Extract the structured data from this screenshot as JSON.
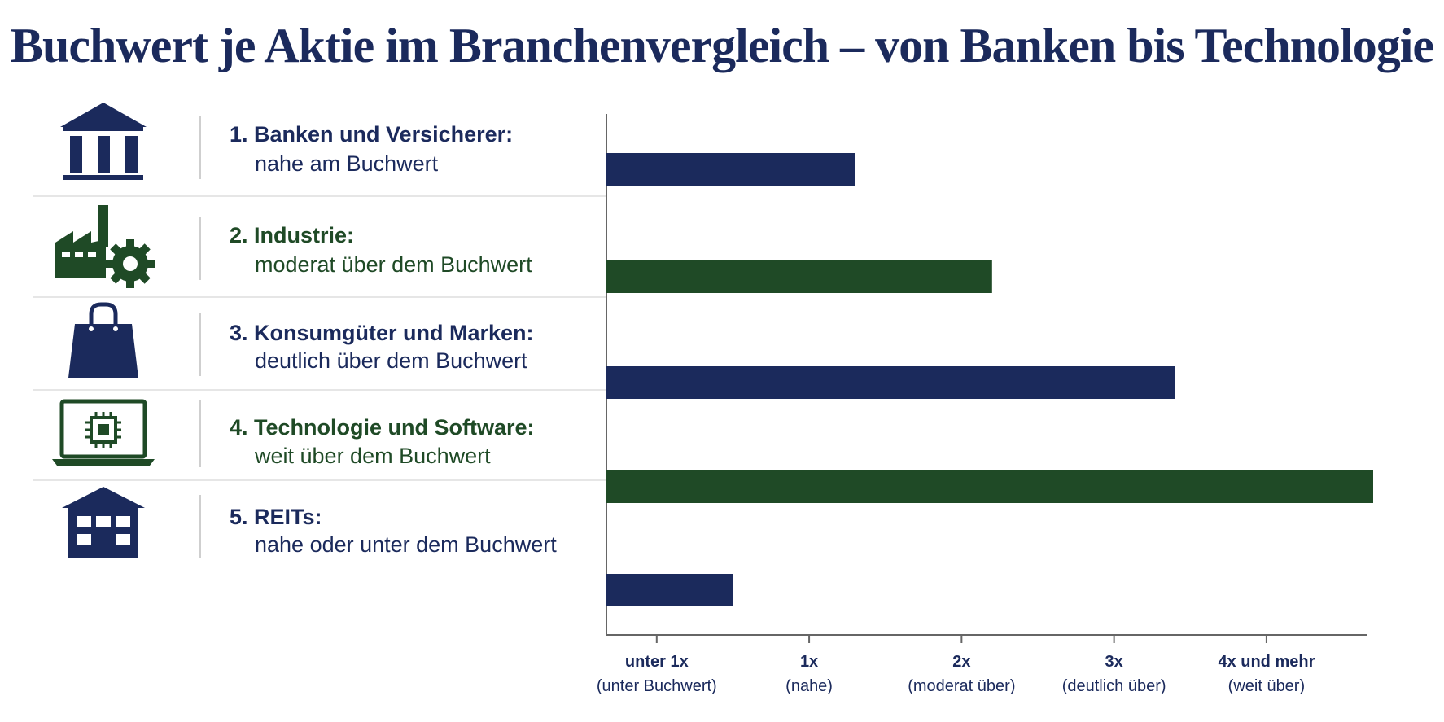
{
  "title": "Buchwert je Aktie im Branchenvergleich – von Banken bis Technologie",
  "colors": {
    "navy": "#1b2a5c",
    "green": "#1f4a26"
  },
  "rows": [
    {
      "heading": "1. Banken und Versicherer:",
      "subtitle": "nahe am Buchwert",
      "icon": "bank-icon",
      "color": "#1b2a5c"
    },
    {
      "heading": "2. Industrie:",
      "subtitle": "moderat über dem Buchwert",
      "icon": "factory-gear-icon",
      "color": "#1f4a26"
    },
    {
      "heading": "3. Konsumgüter und Marken:",
      "subtitle": "deutlich über dem Buchwert",
      "icon": "shopping-bag-icon",
      "color": "#1b2a5c"
    },
    {
      "heading": "4. Technologie und Software:",
      "subtitle": "weit über dem Buchwert",
      "icon": "laptop-chip-icon",
      "color": "#1f4a26"
    },
    {
      "heading": "5. REITs:",
      "subtitle": "nahe oder unter dem Buchwert",
      "icon": "building-icon",
      "color": "#1b2a5c"
    }
  ],
  "chart_data": {
    "type": "bar",
    "orientation": "horizontal",
    "categories": [
      "1. Banken und Versicherer",
      "2. Industrie",
      "3. Konsumgüter und Marken",
      "4. Technologie und Software",
      "5. REITs"
    ],
    "values": [
      1.3,
      2.2,
      3.4,
      4.7,
      0.5
    ],
    "xticks": [
      {
        "value": 0.0,
        "label": "unter 1x",
        "sublabel": "(unter Buchwert)"
      },
      {
        "value": 1.0,
        "label": "1x",
        "sublabel": "(nahe)"
      },
      {
        "value": 2.0,
        "label": "2x",
        "sublabel": "(moderat über)"
      },
      {
        "value": 3.0,
        "label": "3x",
        "sublabel": "(deutlich über)"
      },
      {
        "value": 4.0,
        "label": "4x und mehr",
        "sublabel": "(weit über)"
      }
    ],
    "xlim": [
      -0.33,
      4.7
    ],
    "grid": false,
    "legend": "none"
  }
}
